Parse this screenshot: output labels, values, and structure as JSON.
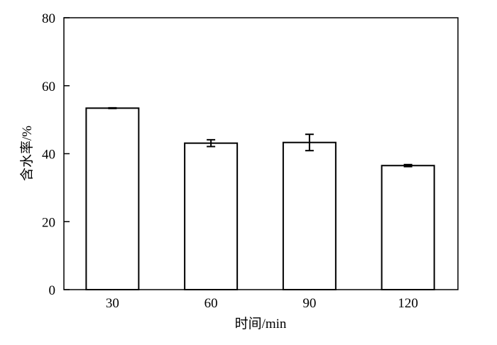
{
  "chart_data": {
    "type": "bar",
    "categories": [
      "30",
      "60",
      "90",
      "120"
    ],
    "values": [
      53.4,
      43.1,
      43.3,
      36.5
    ],
    "errors": [
      0.1,
      1.0,
      2.4,
      0.3
    ],
    "xlabel": "时间/min",
    "ylabel": "含水率/%",
    "ylim": [
      0,
      80
    ],
    "yticks": [
      "0",
      "20",
      "40",
      "60",
      "80"
    ],
    "grid": false,
    "bar_fill": "#ffffff",
    "bar_stroke": "#000000"
  }
}
